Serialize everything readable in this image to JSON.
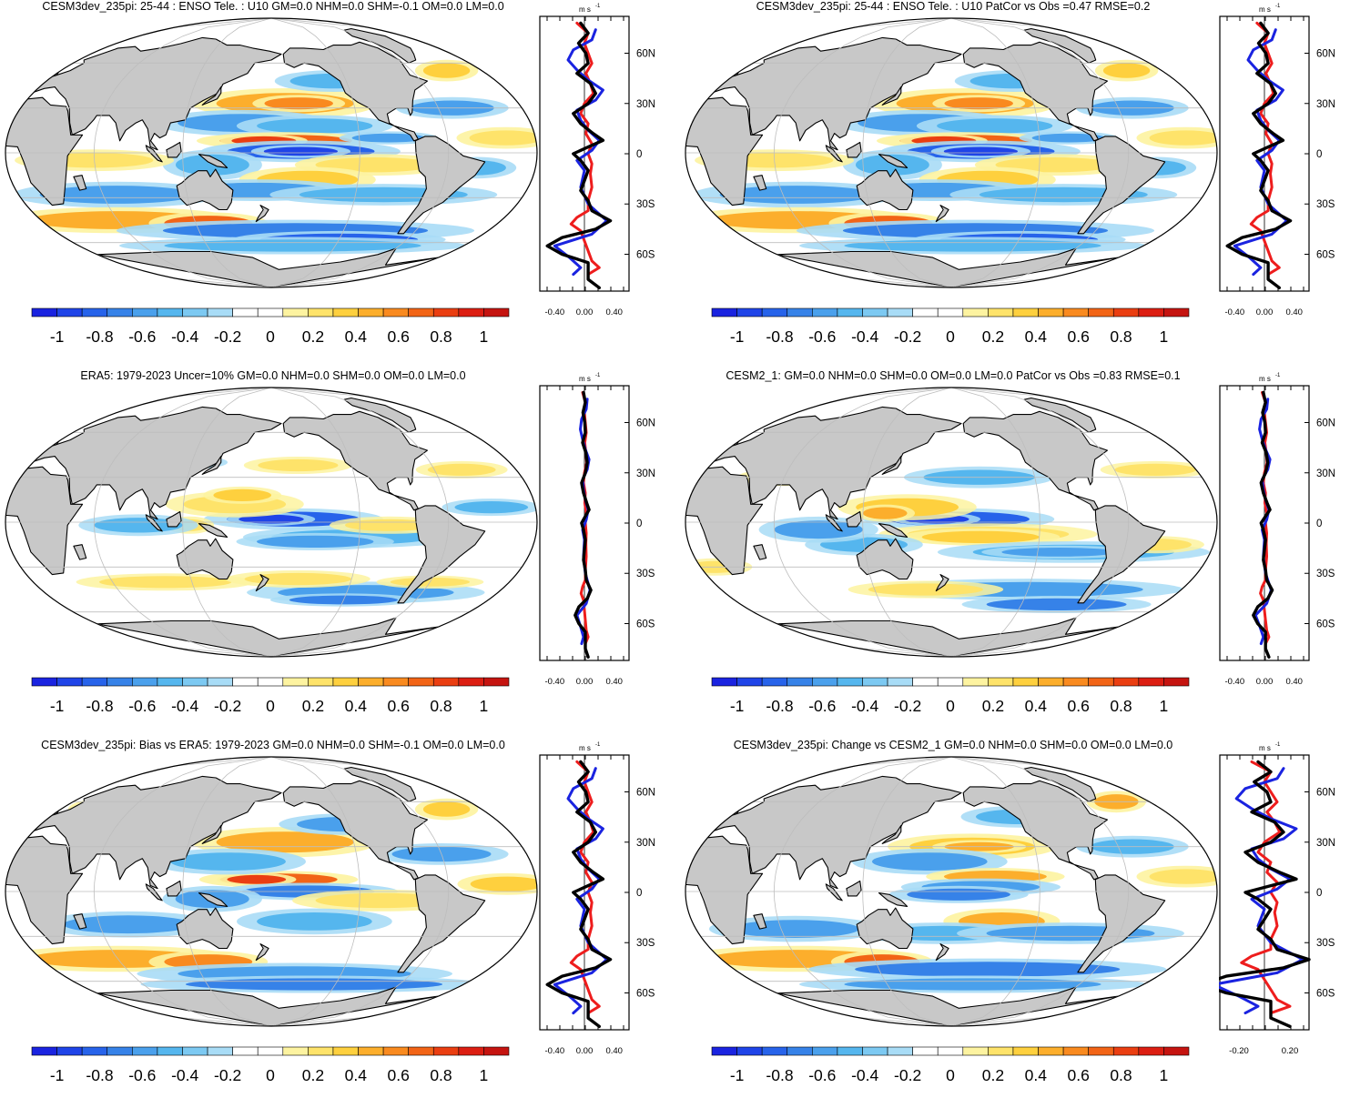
{
  "panels": [
    {
      "title": "CESM3dev_235pi: 25-44 : ENSO Tele. : U10 GM=0.0 NHM=0.0 SHM=-0.1 OM=0.0 LM=0.0",
      "style": "strong",
      "zonal_ticks": [
        "-0.40",
        "0.00",
        "0.40"
      ]
    },
    {
      "title": "CESM3dev_235pi: 25-44 : ENSO Tele. : U10 PatCor vs Obs =0.47 RMSE=0.2",
      "style": "strong",
      "zonal_ticks": [
        "-0.40",
        "0.00",
        "0.40"
      ]
    },
    {
      "title": "ERA5: 1979-2023 Uncer=10% GM=0.0 NHM=0.0 SHM=0.0 OM=0.0 LM=0.0",
      "style": "weak",
      "zonal_ticks": [
        "-0.40",
        "0.00",
        "0.40"
      ]
    },
    {
      "title": "CESM2_1: GM=0.0 NHM=0.0 SHM=0.0 OM=0.0 LM=0.0 PatCor vs Obs =0.83 RMSE=0.1",
      "style": "weak",
      "zonal_ticks": [
        "-0.40",
        "0.00",
        "0.40"
      ]
    },
    {
      "title": "CESM3dev_235pi: Bias vs ERA5: 1979-2023 GM=0.0 NHM=0.0 SHM=-0.1 OM=0.0 LM=0.0",
      "style": "strong",
      "zonal_ticks": [
        "-0.40",
        "0.00",
        "0.40"
      ]
    },
    {
      "title": "CESM3dev_235pi: Change vs CESM2_1 GM=0.0 NHM=0.0 SHM=0.0 OM=0.0 LM=0.0",
      "style": "strong",
      "zonal_ticks": [
        "-0.20",
        "0.20"
      ]
    }
  ],
  "unit_label": "m s",
  "unit_exp": "-1",
  "lat_labels": [
    "60N",
    "30N",
    "0",
    "30S",
    "60S"
  ],
  "colorbar": {
    "labels": [
      "-1",
      "-0.8",
      "-0.6",
      "-0.4",
      "-0.2",
      "0",
      "0.2",
      "0.4",
      "0.6",
      "0.8",
      "1"
    ],
    "colors": [
      "#1a23e0",
      "#1f44e8",
      "#2763ea",
      "#3682e8",
      "#4aa0ec",
      "#55b6ee",
      "#7cc9f2",
      "#a8dcf6",
      "#ffffff",
      "#ffffff",
      "#fdf3a0",
      "#fee36a",
      "#fed03e",
      "#fcae2c",
      "#f98a1f",
      "#f26416",
      "#ea3e11",
      "#dc1e12",
      "#c51410"
    ]
  },
  "colors": {
    "land": "#c8c8c8",
    "line_blue": "#1a23e0",
    "line_red": "#ee1d1d",
    "line_black": "#000000"
  }
}
